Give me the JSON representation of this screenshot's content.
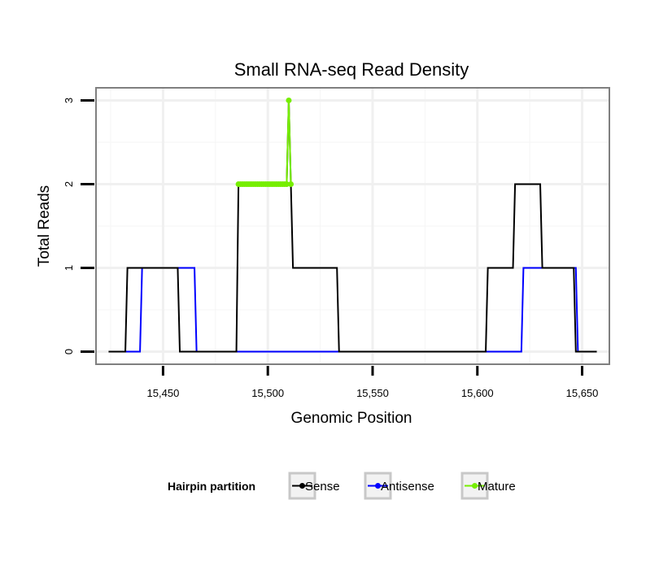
{
  "chart_data": {
    "type": "line",
    "title": "Small RNA-seq Read Density",
    "xlabel": "Genomic Position",
    "ylabel": "Total Reads",
    "xlim": [
      15418,
      15663
    ],
    "ylim": [
      -0.15,
      3.15
    ],
    "x_ticks": [
      15450,
      15500,
      15550,
      15600,
      15650
    ],
    "x_tick_labels": [
      "15,450",
      "15,500",
      "15,550",
      "15,600",
      "15,650"
    ],
    "y_ticks": [
      0,
      1,
      2,
      3
    ],
    "y_tick_labels": [
      "0",
      "1",
      "2",
      "3"
    ],
    "grid": true,
    "legend": {
      "title": "Hairpin partition",
      "position": "bottom",
      "entries": [
        "Sense",
        "Antisense",
        "Mature"
      ]
    },
    "series": [
      {
        "name": "Sense",
        "color": "#000000",
        "points": [
          [
            15424,
            0
          ],
          [
            15432,
            0
          ],
          [
            15433,
            1
          ],
          [
            15457,
            1
          ],
          [
            15458,
            0
          ],
          [
            15485,
            0
          ],
          [
            15486,
            2
          ],
          [
            15509,
            2
          ],
          [
            15510,
            3
          ],
          [
            15511,
            2
          ],
          [
            15512,
            1
          ],
          [
            15533,
            1
          ],
          [
            15534,
            0
          ],
          [
            15604,
            0
          ],
          [
            15605,
            1
          ],
          [
            15617,
            1
          ],
          [
            15618,
            2
          ],
          [
            15630,
            2
          ],
          [
            15631,
            1
          ],
          [
            15646,
            1
          ],
          [
            15647,
            0
          ],
          [
            15657,
            0
          ]
        ]
      },
      {
        "name": "Antisense",
        "color": "#0000ff",
        "points": [
          [
            15432,
            0
          ],
          [
            15439,
            0
          ],
          [
            15440,
            1
          ],
          [
            15465,
            1
          ],
          [
            15466,
            0
          ],
          [
            15485,
            0
          ],
          [
            15533,
            0
          ],
          [
            15621,
            0
          ],
          [
            15622,
            1
          ],
          [
            15647,
            1
          ],
          [
            15648,
            0
          ]
        ]
      },
      {
        "name": "Mature",
        "color": "#76ee00",
        "points": [
          [
            15486,
            2
          ],
          [
            15487,
            2
          ],
          [
            15488,
            2
          ],
          [
            15489,
            2
          ],
          [
            15490,
            2
          ],
          [
            15491,
            2
          ],
          [
            15492,
            2
          ],
          [
            15493,
            2
          ],
          [
            15494,
            2
          ],
          [
            15495,
            2
          ],
          [
            15496,
            2
          ],
          [
            15497,
            2
          ],
          [
            15498,
            2
          ],
          [
            15499,
            2
          ],
          [
            15500,
            2
          ],
          [
            15501,
            2
          ],
          [
            15502,
            2
          ],
          [
            15503,
            2
          ],
          [
            15504,
            2
          ],
          [
            15505,
            2
          ],
          [
            15506,
            2
          ],
          [
            15507,
            2
          ],
          [
            15508,
            2
          ],
          [
            15509,
            2
          ],
          [
            15510,
            3
          ],
          [
            15511,
            2
          ]
        ]
      }
    ]
  }
}
